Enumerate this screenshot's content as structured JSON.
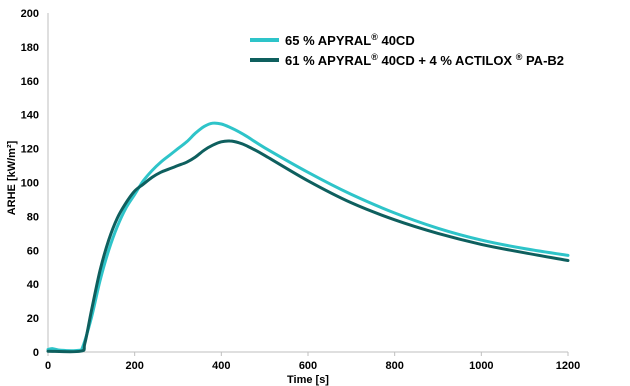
{
  "chart_data": {
    "type": "line",
    "title": "",
    "xlabel": "Time [s]",
    "ylabel": "ARHE [kW/m²]",
    "xlim": [
      0,
      1200
    ],
    "ylim": [
      0,
      200
    ],
    "x_ticks": [
      0,
      200,
      400,
      600,
      800,
      1000,
      1200
    ],
    "y_ticks": [
      0,
      20,
      40,
      60,
      80,
      100,
      120,
      140,
      160,
      180,
      200
    ],
    "grid": false,
    "legend_position": "top-right",
    "series": [
      {
        "name": "65 % APYRAL® 40CD",
        "legend_parts": {
          "pre": "65 % APYRAL",
          "sup": "®",
          "post": " 40CD"
        },
        "color": "#2ec4c9",
        "points": [
          [
            0,
            1.5
          ],
          [
            10,
            2
          ],
          [
            30,
            1
          ],
          [
            70,
            1
          ],
          [
            80,
            3
          ],
          [
            100,
            20
          ],
          [
            120,
            42
          ],
          [
            140,
            60
          ],
          [
            160,
            74
          ],
          [
            180,
            85
          ],
          [
            200,
            93
          ],
          [
            220,
            101
          ],
          [
            240,
            107
          ],
          [
            260,
            112
          ],
          [
            280,
            116
          ],
          [
            300,
            120
          ],
          [
            320,
            124
          ],
          [
            340,
            129
          ],
          [
            360,
            133
          ],
          [
            380,
            135
          ],
          [
            400,
            134.5
          ],
          [
            420,
            132.5
          ],
          [
            440,
            130
          ],
          [
            460,
            127
          ],
          [
            500,
            120.5
          ],
          [
            600,
            106
          ],
          [
            700,
            93
          ],
          [
            800,
            82
          ],
          [
            900,
            73
          ],
          [
            1000,
            66
          ],
          [
            1100,
            61
          ],
          [
            1200,
            57
          ]
        ]
      },
      {
        "name": "61 % APYRAL® 40CD + 4 % ACTILOX ® PA-B2",
        "legend_parts": {
          "pre": "61 % APYRAL",
          "sup": "®",
          "mid": " 40CD + 4 % ACTILOX ",
          "sup2": "®",
          "post": " PA-B2"
        },
        "color": "#0e5f5e",
        "points": [
          [
            0,
            0.5
          ],
          [
            75,
            0.5
          ],
          [
            85,
            5
          ],
          [
            100,
            24
          ],
          [
            120,
            48
          ],
          [
            140,
            66
          ],
          [
            160,
            79
          ],
          [
            180,
            88
          ],
          [
            200,
            95
          ],
          [
            220,
            99
          ],
          [
            240,
            103
          ],
          [
            260,
            106
          ],
          [
            280,
            108
          ],
          [
            300,
            110
          ],
          [
            320,
            112
          ],
          [
            340,
            115
          ],
          [
            360,
            119
          ],
          [
            380,
            122
          ],
          [
            400,
            124
          ],
          [
            420,
            124.5
          ],
          [
            440,
            123.5
          ],
          [
            460,
            121.5
          ],
          [
            500,
            116
          ],
          [
            600,
            101
          ],
          [
            700,
            88
          ],
          [
            800,
            78
          ],
          [
            900,
            70
          ],
          [
            1000,
            63.5
          ],
          [
            1100,
            58.5
          ],
          [
            1200,
            54
          ]
        ]
      }
    ]
  }
}
